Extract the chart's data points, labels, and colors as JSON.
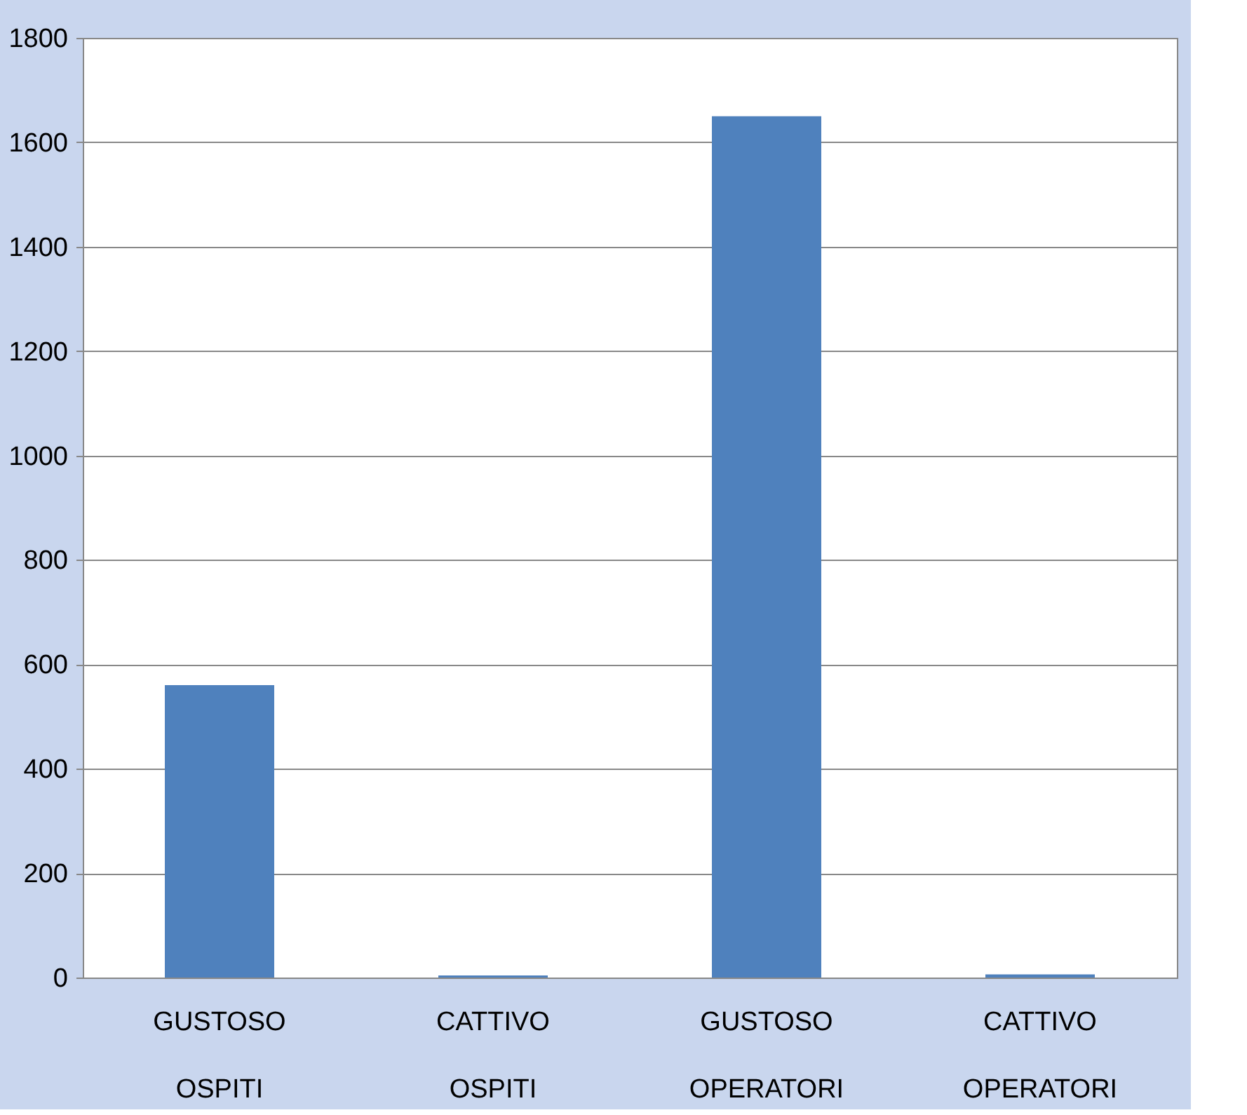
{
  "chart_data": {
    "type": "bar",
    "categories": [
      "GUSTOSO OSPITI",
      "CATTIVO OSPITI",
      "GUSTOSO OPERATORI",
      "CATTIVO OPERATORI"
    ],
    "values": [
      560,
      4,
      1650,
      6
    ],
    "color": "#4f81bd",
    "ylim": [
      0,
      1800
    ],
    "yticks": [
      0,
      200,
      400,
      600,
      800,
      1000,
      1200,
      1400,
      1600,
      1800
    ],
    "grid": "y"
  }
}
